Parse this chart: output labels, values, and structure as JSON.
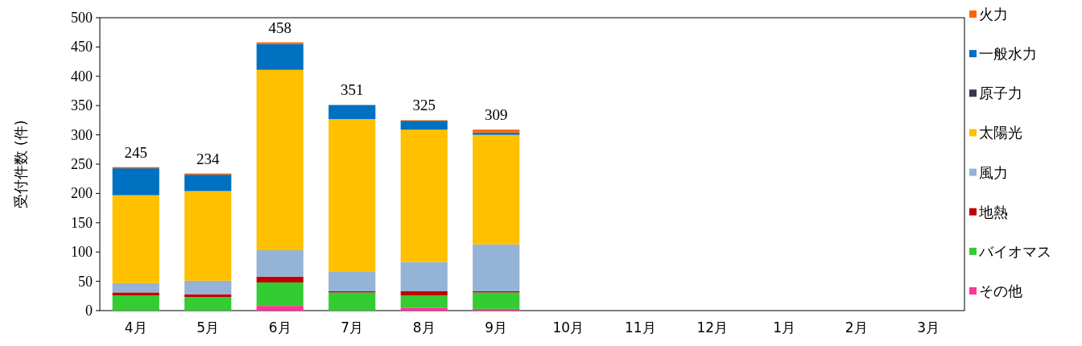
{
  "chart_data": {
    "type": "bar",
    "stacked": true,
    "ylabel": "受付件数 (件)",
    "categories": [
      "4月",
      "5月",
      "6月",
      "7月",
      "8月",
      "9月",
      "10月",
      "11月",
      "12月",
      "1月",
      "2月",
      "3月"
    ],
    "series": [
      {
        "name": "その他",
        "color": "#ff3399",
        "values": [
          0,
          0,
          8,
          0,
          5,
          3,
          null,
          null,
          null,
          null,
          null,
          null
        ]
      },
      {
        "name": "バイオマス",
        "color": "#33cc33",
        "values": [
          26,
          23,
          40,
          31,
          21,
          28,
          null,
          null,
          null,
          null,
          null,
          null
        ]
      },
      {
        "name": "地熱",
        "color": "#c00000",
        "values": [
          5,
          5,
          10,
          2,
          7,
          2,
          null,
          null,
          null,
          null,
          null,
          null
        ]
      },
      {
        "name": "風力",
        "color": "#95b3d7",
        "values": [
          16,
          23,
          45,
          34,
          50,
          80,
          null,
          null,
          null,
          null,
          null,
          null
        ]
      },
      {
        "name": "太陽光",
        "color": "#ffc000",
        "values": [
          150,
          153,
          308,
          260,
          226,
          187,
          null,
          null,
          null,
          null,
          null,
          null
        ]
      },
      {
        "name": "原子力",
        "color": "#403152",
        "values": [
          0,
          0,
          0,
          0,
          0,
          0,
          null,
          null,
          null,
          null,
          null,
          null
        ]
      },
      {
        "name": "一般水力",
        "color": "#0070c0",
        "values": [
          46,
          28,
          44,
          24,
          15,
          4,
          null,
          null,
          null,
          null,
          null,
          null
        ]
      },
      {
        "name": "火力",
        "color": "#ff6600",
        "values": [
          2,
          2,
          3,
          0,
          1,
          5,
          null,
          null,
          null,
          null,
          null,
          null
        ]
      }
    ],
    "totals": [
      "245",
      "234",
      "458",
      "351",
      "325",
      "309",
      null,
      null,
      null,
      null,
      null,
      null
    ],
    "ylim": [
      0,
      500
    ],
    "yticks": [
      0,
      50,
      100,
      150,
      200,
      250,
      300,
      350,
      400,
      450,
      500
    ],
    "legend": "right"
  }
}
